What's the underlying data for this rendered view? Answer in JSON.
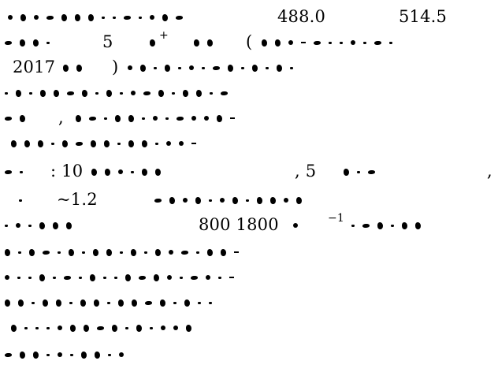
{
  "document": {
    "line1": {
      "a": "488.0",
      "b": "514.5"
    },
    "line2": {
      "a": "5",
      "b": "+",
      "c": "("
    },
    "line3": {
      "a": "2017",
      "b": ")"
    },
    "line5": {
      "a": ","
    },
    "line7": {
      "a": ": 10",
      "b": ", 5",
      "c": ","
    },
    "line8": {
      "a": "~1.2"
    },
    "line9": {
      "a": "800  1800",
      "b": "−1"
    }
  }
}
